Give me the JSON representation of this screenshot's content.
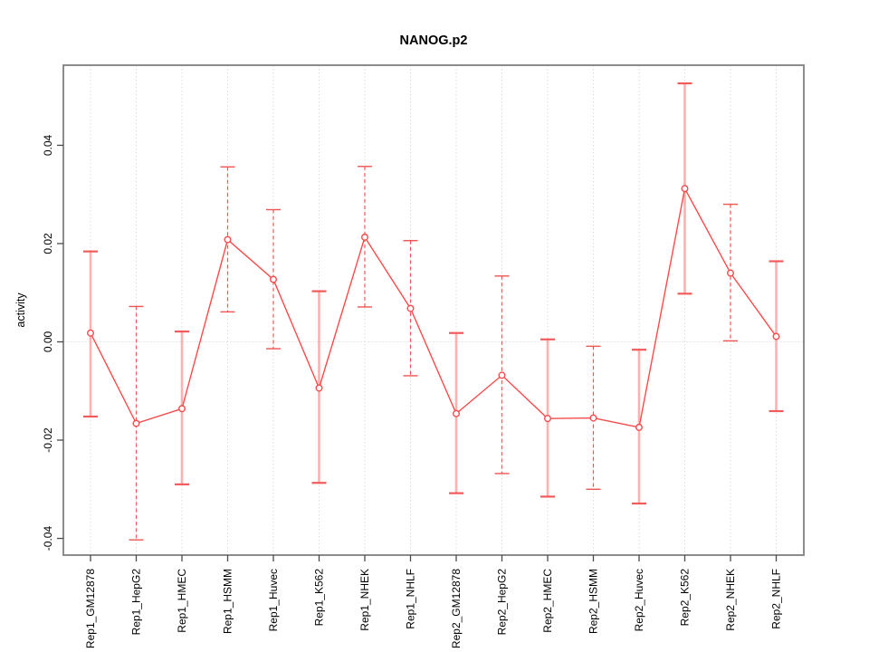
{
  "chart_data": {
    "type": "line",
    "title": "NANOG.p2",
    "xlabel": "",
    "ylabel": "activity",
    "legend_position": "none",
    "categories": [
      "Rep1_GM12878",
      "Rep1_HepG2",
      "Rep1_HMEC",
      "Rep1_HSMM",
      "Rep1_Huvec",
      "Rep1_K562",
      "Rep1_NHEK",
      "Rep1_NHLF",
      "Rep2_GM12878",
      "Rep2_HepG2",
      "Rep2_HMEC",
      "Rep2_HSMM",
      "Rep2_Huvec",
      "Rep2_K562",
      "Rep2_NHEK",
      "Rep2_NHLF"
    ],
    "series": [
      {
        "name": "activity",
        "marker": "open-circle",
        "values": [
          0.0018,
          -0.0166,
          -0.0136,
          0.0208,
          0.0127,
          -0.0094,
          0.0213,
          0.0068,
          -0.0146,
          -0.0068,
          -0.0156,
          -0.0155,
          -0.0174,
          0.0312,
          0.014,
          0.0011
        ]
      }
    ],
    "error_bars": {
      "upper": [
        0.0184,
        0.0072,
        0.0021,
        0.0356,
        0.0269,
        0.0103,
        0.0357,
        0.0206,
        0.0018,
        0.0134,
        0.0005,
        -0.0009,
        -0.0016,
        0.0526,
        0.028,
        0.0164
      ],
      "lower": [
        -0.0152,
        -0.0403,
        -0.029,
        0.0061,
        -0.0014,
        -0.0287,
        0.0071,
        -0.0069,
        -0.0308,
        -0.0268,
        -0.0315,
        -0.03,
        -0.0329,
        0.0098,
        0.0002,
        -0.0141
      ],
      "bar_styles": [
        "solid",
        "dashed",
        "solid",
        "dashed",
        "dashed",
        "solid",
        "dashed",
        "dashed",
        "solid",
        "dashed",
        "solid",
        "dashed",
        "solid",
        "solid",
        "dashed",
        "solid"
      ]
    },
    "ylim": [
      -0.0434,
      0.0563
    ],
    "yticks": [
      -0.04,
      -0.02,
      0,
      0.02,
      0.04
    ],
    "ytick_labels": [
      "-0.04",
      "-0.02",
      "0.00",
      "0.02",
      "0.04"
    ],
    "grid": {
      "vertical_dotted_per_category": true,
      "horizontal_zero_line_dotted": true
    },
    "x_labels_rotated_degrees": 90,
    "colors": {
      "line": "#f34c4c",
      "marker_stroke": "#f34c4c",
      "marker_fill": "#ffffff",
      "error_bar_solid": "#ffb1af",
      "error_bar_dashed": "#ef5555",
      "cap": "#f25b5b",
      "grid": "#dcdcdc",
      "frame": "#7f7f7f",
      "tick": "#4a4a4a",
      "text": "#000000",
      "background": "#ffffff"
    }
  }
}
